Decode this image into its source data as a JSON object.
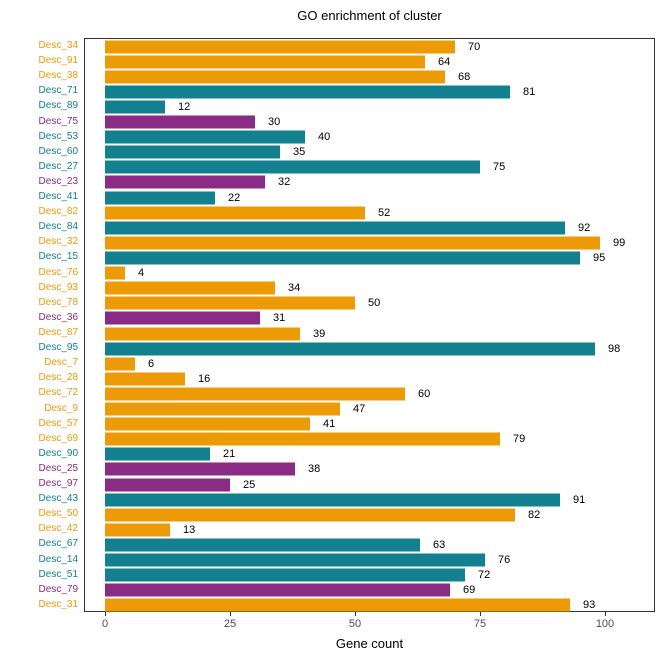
{
  "chart_data": {
    "type": "bar",
    "orientation": "horizontal",
    "title": "GO enrichment of cluster",
    "xlabel": "Gene count",
    "ylabel": "",
    "xlim": [
      0,
      110
    ],
    "xticks": [
      0,
      25,
      50,
      75,
      100
    ],
    "grid": false,
    "legend": false,
    "panel_border_color": "#333333",
    "categories": [
      "Desc_34",
      "Desc_91",
      "Desc_38",
      "Desc_71",
      "Desc_89",
      "Desc_75",
      "Desc_53",
      "Desc_60",
      "Desc_27",
      "Desc_23",
      "Desc_41",
      "Desc_82",
      "Desc_84",
      "Desc_32",
      "Desc_15",
      "Desc_76",
      "Desc_93",
      "Desc_78",
      "Desc_36",
      "Desc_87",
      "Desc_95",
      "Desc_7",
      "Desc_28",
      "Desc_72",
      "Desc_9",
      "Desc_57",
      "Desc_69",
      "Desc_90",
      "Desc_25",
      "Desc_97",
      "Desc_43",
      "Desc_50",
      "Desc_42",
      "Desc_67",
      "Desc_14",
      "Desc_51",
      "Desc_79",
      "Desc_31"
    ],
    "values": [
      70,
      64,
      68,
      81,
      12,
      30,
      40,
      35,
      75,
      32,
      22,
      52,
      92,
      99,
      95,
      4,
      34,
      50,
      31,
      39,
      98,
      6,
      16,
      60,
      47,
      41,
      79,
      21,
      38,
      25,
      91,
      82,
      13,
      63,
      76,
      72,
      69,
      93
    ],
    "groups": [
      "orange",
      "orange",
      "orange",
      "teal",
      "teal",
      "purple",
      "teal",
      "teal",
      "teal",
      "purple",
      "teal",
      "orange",
      "teal",
      "orange",
      "teal",
      "orange",
      "orange",
      "orange",
      "purple",
      "orange",
      "teal",
      "orange",
      "orange",
      "orange",
      "orange",
      "orange",
      "orange",
      "teal",
      "purple",
      "purple",
      "teal",
      "orange",
      "orange",
      "teal",
      "teal",
      "teal",
      "purple",
      "orange"
    ],
    "palette": {
      "orange": "#EC9A06",
      "teal": "#12808E",
      "purple": "#8A2B85"
    },
    "bar_label_color": "#000000",
    "tick_label_color": "#4d4d4d"
  }
}
